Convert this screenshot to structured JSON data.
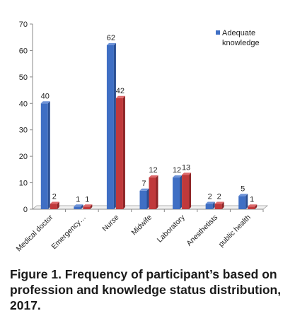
{
  "chart_data": {
    "type": "bar",
    "categories": [
      "Medical doctor",
      "Emergency…",
      "Nurse",
      "Midwife",
      "Laboratory",
      "Anesthetists",
      "public health"
    ],
    "series": [
      {
        "name": "Adequate knowledge",
        "values": [
          40,
          1,
          62,
          7,
          12,
          2,
          5
        ],
        "color": "#3f6fc4"
      },
      {
        "name": "",
        "values": [
          2,
          1,
          42,
          12,
          13,
          2,
          1
        ],
        "color": "#c0393b"
      }
    ],
    "ylim": [
      0,
      70
    ],
    "yticks": [
      0,
      10,
      20,
      30,
      40,
      50,
      60,
      70
    ],
    "grid": false,
    "legend": "top-right",
    "title": "",
    "xlabel": "",
    "ylabel": ""
  },
  "legend": {
    "line1": "Adequate",
    "line2": "knowledge"
  },
  "caption": {
    "line1": "Figure 1. Frequency of participant’s based on",
    "line2": "profession and knowledge status distribution,",
    "line3": "2017."
  }
}
